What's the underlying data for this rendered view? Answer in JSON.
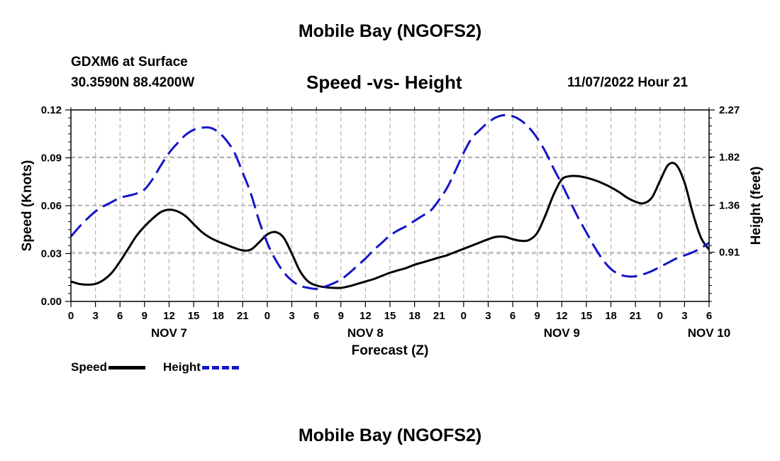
{
  "titles": {
    "main": "Mobile Bay (NGOFS2)",
    "bottom": "Mobile Bay (NGOFS2)",
    "station": "GDXM6 at Surface",
    "coords": "30.3590N  88.4200W",
    "chart": "Speed -vs- Height",
    "timestamp": "11/07/2022 Hour 21"
  },
  "legend": {
    "speed": "Speed",
    "height": "Height"
  },
  "colors": {
    "speed": "#000000",
    "height": "#1515c8",
    "grid": "#b4b4b4"
  },
  "chart_data": {
    "type": "line",
    "title": "Speed -vs- Height",
    "xlabel": "Forecast (Z)",
    "ylabel": "Speed (Knots)",
    "y2label": "Height (feet)",
    "grid": true,
    "x_range_hours": [
      0,
      78
    ],
    "x_ticks": [
      {
        "h": 0,
        "label": "0"
      },
      {
        "h": 3,
        "label": "3"
      },
      {
        "h": 6,
        "label": "6"
      },
      {
        "h": 9,
        "label": "9"
      },
      {
        "h": 12,
        "label": "12"
      },
      {
        "h": 15,
        "label": "15"
      },
      {
        "h": 18,
        "label": "18"
      },
      {
        "h": 21,
        "label": "21"
      },
      {
        "h": 24,
        "label": "0"
      },
      {
        "h": 27,
        "label": "3"
      },
      {
        "h": 30,
        "label": "6"
      },
      {
        "h": 33,
        "label": "9"
      },
      {
        "h": 36,
        "label": "12"
      },
      {
        "h": 39,
        "label": "15"
      },
      {
        "h": 42,
        "label": "18"
      },
      {
        "h": 45,
        "label": "21"
      },
      {
        "h": 48,
        "label": "0"
      },
      {
        "h": 51,
        "label": "3"
      },
      {
        "h": 54,
        "label": "6"
      },
      {
        "h": 57,
        "label": "9"
      },
      {
        "h": 60,
        "label": "12"
      },
      {
        "h": 63,
        "label": "15"
      },
      {
        "h": 66,
        "label": "18"
      },
      {
        "h": 69,
        "label": "21"
      },
      {
        "h": 72,
        "label": "0"
      },
      {
        "h": 75,
        "label": "3"
      },
      {
        "h": 78,
        "label": "6"
      }
    ],
    "day_labels": [
      {
        "h": 12,
        "label": "NOV 7"
      },
      {
        "h": 36,
        "label": "NOV 8"
      },
      {
        "h": 60,
        "label": "NOV 9"
      },
      {
        "h": 78,
        "label": "NOV 10"
      }
    ],
    "y_left": {
      "min": 0,
      "max": 0.12,
      "ticks": [
        "0.00",
        "0.03",
        "0.06",
        "0.09",
        "0.12"
      ]
    },
    "y_right": {
      "min": 0.44,
      "max": 2.27,
      "ticks": [
        "0.91",
        "1.36",
        "1.82",
        "2.27"
      ]
    },
    "series": [
      {
        "name": "Speed",
        "axis": "left",
        "style": "solid",
        "x": [
          0,
          1,
          2,
          3,
          4,
          5,
          6,
          7,
          8,
          9,
          10,
          11,
          12,
          13,
          14,
          15,
          16,
          17,
          18,
          19,
          20,
          21,
          22,
          23,
          24,
          25,
          26,
          27,
          28,
          29,
          30,
          31,
          32,
          33,
          34,
          35,
          36,
          37,
          38,
          39,
          40,
          41,
          42,
          43,
          44,
          45,
          46,
          47,
          48,
          49,
          50,
          51,
          52,
          53,
          54,
          55,
          56,
          57,
          58,
          59,
          60,
          61,
          62,
          63,
          64,
          65,
          66,
          67,
          68,
          69,
          70,
          71,
          72,
          73,
          74,
          75,
          76,
          77,
          78
        ],
        "values": [
          0.0125,
          0.011,
          0.0105,
          0.011,
          0.0135,
          0.018,
          0.025,
          0.033,
          0.041,
          0.047,
          0.052,
          0.056,
          0.0575,
          0.0565,
          0.0535,
          0.0485,
          0.0435,
          0.04,
          0.0375,
          0.0355,
          0.0335,
          0.032,
          0.0325,
          0.037,
          0.042,
          0.0435,
          0.04,
          0.03,
          0.019,
          0.0125,
          0.01,
          0.009,
          0.0085,
          0.0085,
          0.0095,
          0.011,
          0.0125,
          0.014,
          0.016,
          0.018,
          0.0195,
          0.021,
          0.023,
          0.0245,
          0.026,
          0.0275,
          0.029,
          0.031,
          0.033,
          0.035,
          0.037,
          0.039,
          0.0405,
          0.0405,
          0.039,
          0.038,
          0.0385,
          0.043,
          0.054,
          0.067,
          0.0765,
          0.0785,
          0.0785,
          0.0775,
          0.076,
          0.074,
          0.0715,
          0.0685,
          0.065,
          0.0625,
          0.0615,
          0.065,
          0.0755,
          0.0855,
          0.0855,
          0.0745,
          0.0555,
          0.04,
          0.0325
        ]
      },
      {
        "name": "Height",
        "axis": "right",
        "style": "dashed",
        "x": [
          0,
          1,
          2,
          3,
          4,
          5,
          6,
          7,
          8,
          9,
          10,
          11,
          12,
          13,
          14,
          15,
          16,
          17,
          18,
          19,
          20,
          21,
          22,
          23,
          24,
          25,
          26,
          27,
          28,
          29,
          30,
          31,
          32,
          33,
          34,
          35,
          36,
          37,
          38,
          39,
          40,
          41,
          42,
          43,
          44,
          45,
          46,
          47,
          48,
          49,
          50,
          51,
          52,
          53,
          54,
          55,
          56,
          57,
          58,
          59,
          60,
          61,
          62,
          63,
          64,
          65,
          66,
          67,
          68,
          69,
          70,
          71,
          72,
          73,
          74,
          75,
          76,
          77,
          78
        ],
        "values": [
          1.06,
          1.15,
          1.23,
          1.3,
          1.35,
          1.39,
          1.43,
          1.45,
          1.47,
          1.51,
          1.61,
          1.74,
          1.86,
          1.95,
          2.03,
          2.08,
          2.1,
          2.1,
          2.06,
          1.98,
          1.86,
          1.67,
          1.47,
          1.21,
          1.0,
          0.84,
          0.72,
          0.64,
          0.59,
          0.57,
          0.56,
          0.58,
          0.61,
          0.65,
          0.71,
          0.78,
          0.85,
          0.93,
          1.0,
          1.07,
          1.12,
          1.16,
          1.21,
          1.26,
          1.31,
          1.41,
          1.53,
          1.69,
          1.86,
          2.0,
          2.08,
          2.15,
          2.2,
          2.22,
          2.21,
          2.17,
          2.1,
          2.0,
          1.87,
          1.71,
          1.56,
          1.4,
          1.24,
          1.1,
          0.96,
          0.84,
          0.75,
          0.7,
          0.68,
          0.68,
          0.7,
          0.73,
          0.77,
          0.81,
          0.85,
          0.88,
          0.91,
          0.95,
          1.0
        ]
      }
    ]
  }
}
